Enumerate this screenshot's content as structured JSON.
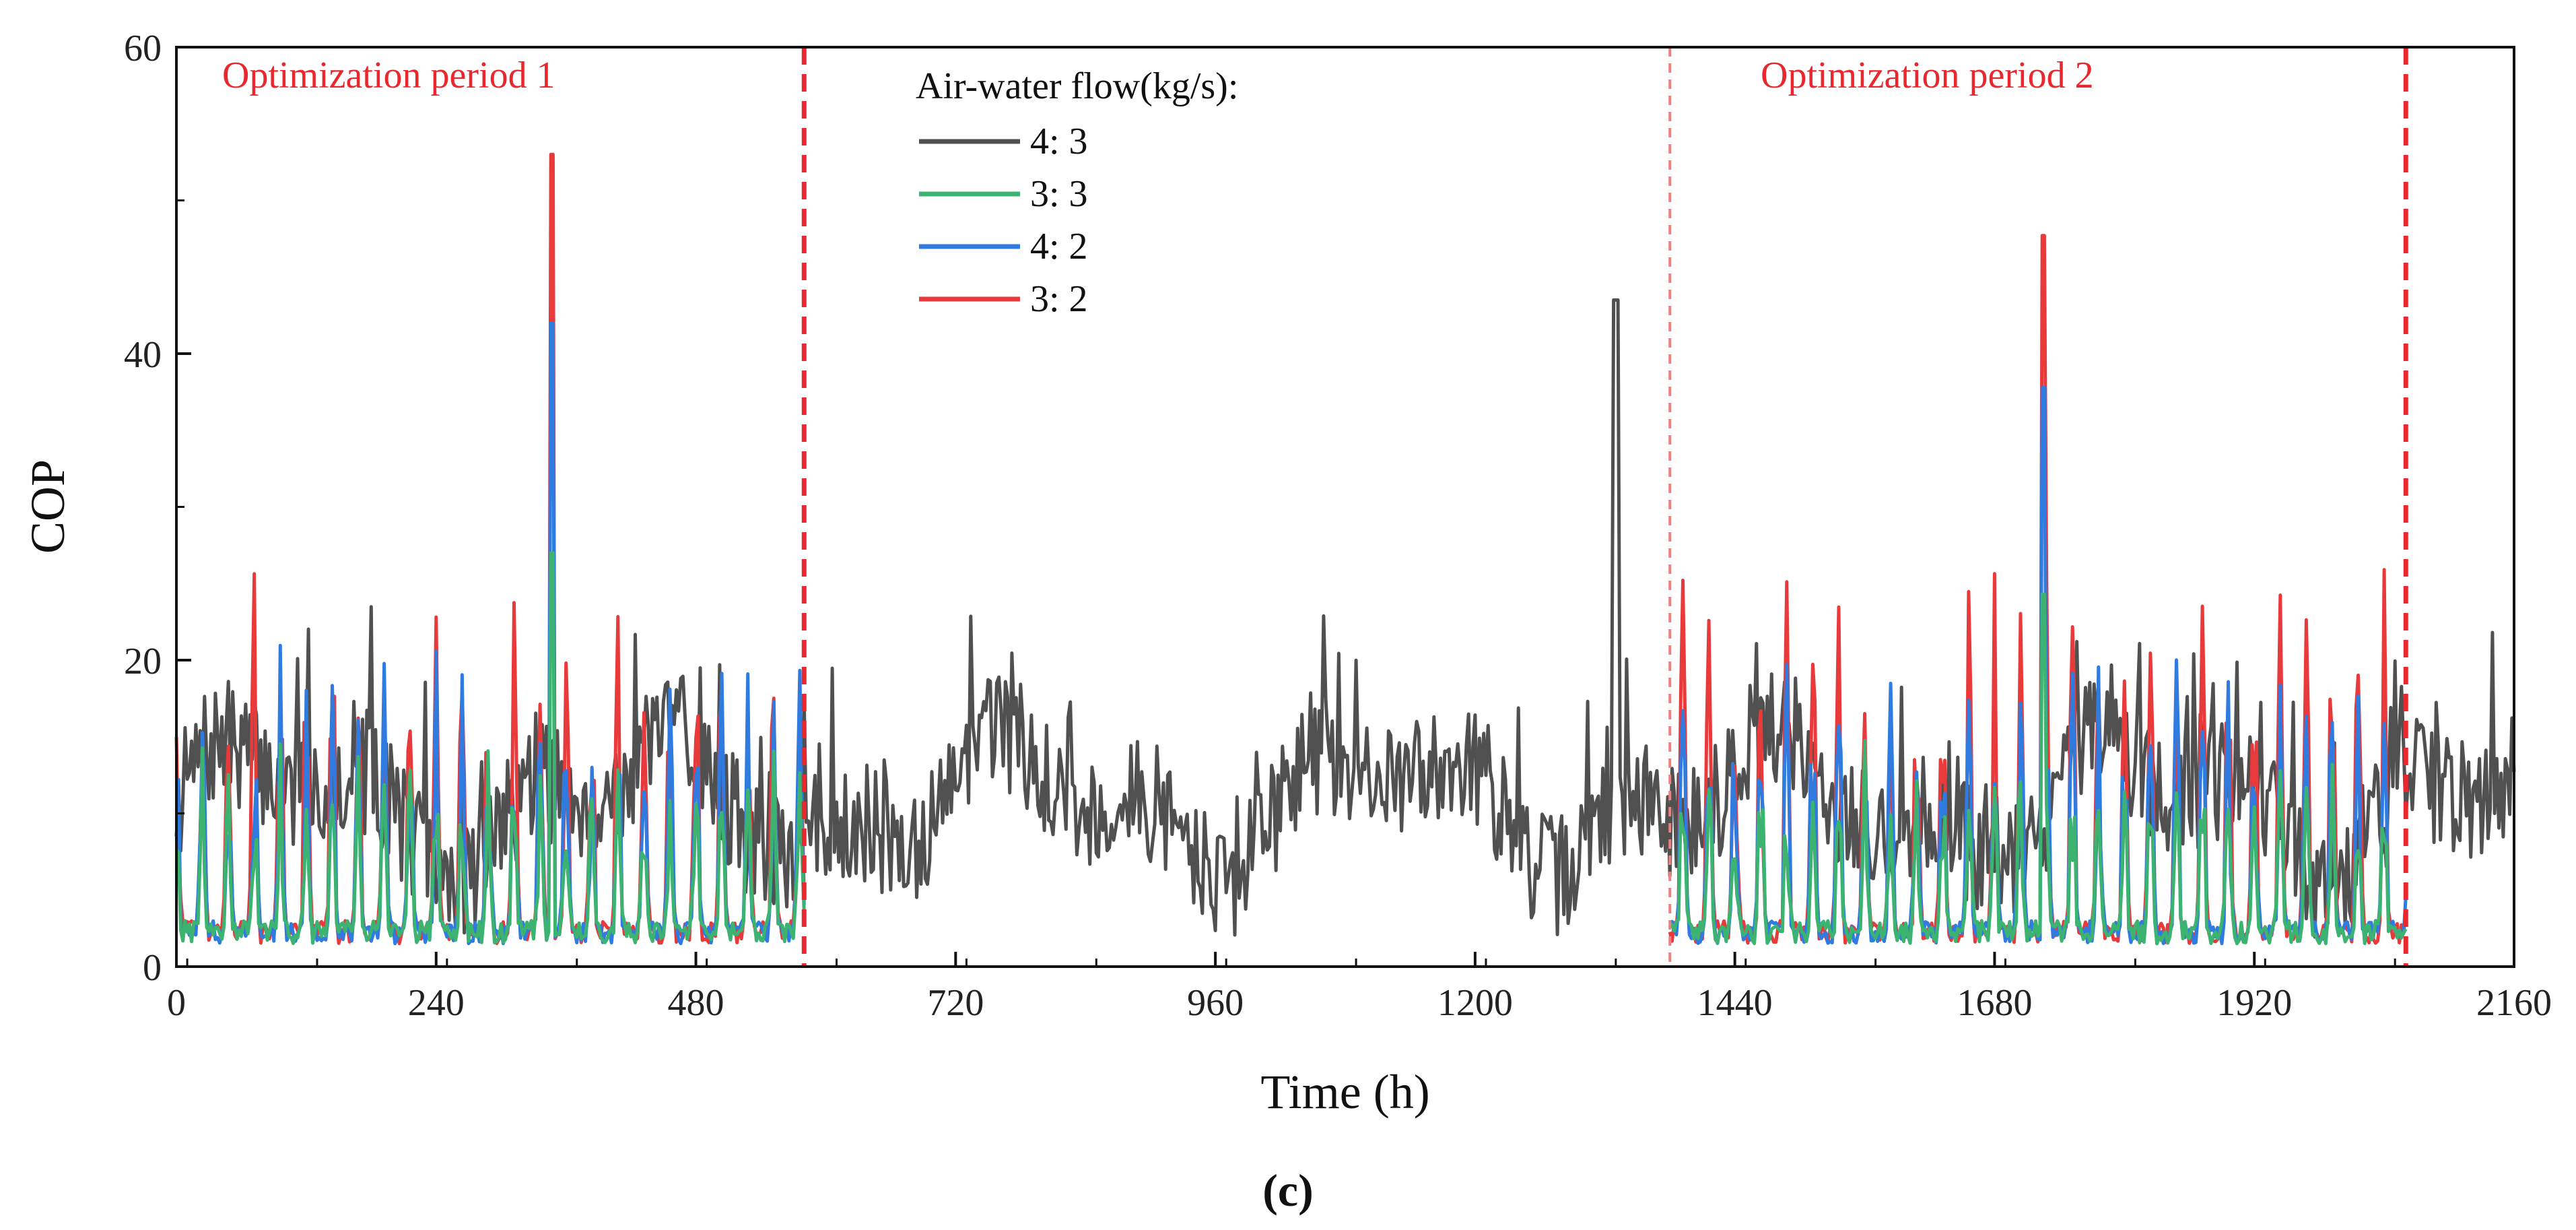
{
  "chart_data": {
    "type": "line",
    "panel_label": "(c)",
    "xlabel": "Time (h)",
    "ylabel": "COP",
    "xlim": [
      0,
      2160
    ],
    "ylim": [
      0,
      60
    ],
    "xticks": [
      0,
      240,
      480,
      720,
      960,
      1200,
      1440,
      1680,
      1920,
      2160
    ],
    "yticks": [
      0,
      20,
      40,
      60
    ],
    "legend_title": "Air-water flow(kg/s):",
    "legend_position": "top-center",
    "series": [
      {
        "name": "4: 3",
        "color": "#505050",
        "range": [
          0,
          2160
        ],
        "base": 9,
        "amp": 8,
        "peak_value": 43.5,
        "peak_at": 1330
      },
      {
        "name": "3: 3",
        "color": "#3cb371",
        "range": [
          0,
          1380,
          2060
        ],
        "base": 4,
        "amp": 8,
        "peak_value": 27,
        "peak_at": 347
      },
      {
        "name": "4: 2",
        "color": "#2f7be0",
        "range": [
          0,
          1380,
          2060
        ],
        "base": 6,
        "amp": 12,
        "peak_value": 42,
        "peak_at": 347
      },
      {
        "name": "3: 2",
        "color": "#e8393b",
        "range": [
          0,
          1380,
          2060
        ],
        "base": 8,
        "amp": 16,
        "peak_value": 53,
        "peak_at": 347
      }
    ],
    "period_markers": [
      {
        "x": 580,
        "style": "dashed"
      },
      {
        "x": 1380,
        "style": "dashed-thin"
      },
      {
        "x": 2060,
        "style": "dashed"
      }
    ],
    "annotations": [
      {
        "text": "Optimization period 1",
        "x_range": [
          0,
          580
        ]
      },
      {
        "text": "Optimization period 2",
        "x_range": [
          1380,
          2060
        ]
      }
    ]
  }
}
